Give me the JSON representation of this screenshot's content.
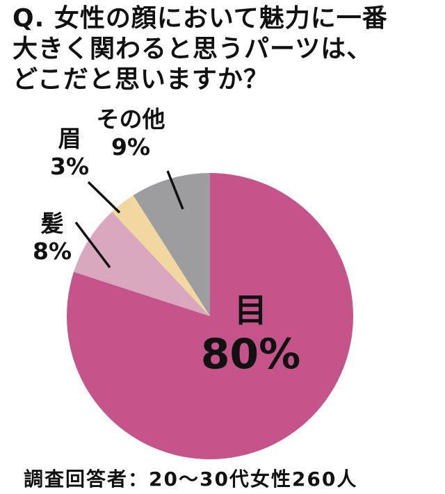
{
  "question": {
    "lines": [
      "Q. 女性の顔において魅力に一番",
      "大きく関わると思うパーツは、",
      "どこだと思いますか？"
    ]
  },
  "chart_data": {
    "type": "pie",
    "title": "Q. 女性の顔において魅力に一番大きく関わると思うパーツは、どこだと思いますか？",
    "start_angle_deg": 0,
    "direction": "clockwise",
    "legend": "none",
    "slices": [
      {
        "key": "eyes",
        "label": "目",
        "value": 80,
        "pct_text": "80%",
        "color": "#c4548a"
      },
      {
        "key": "hair",
        "label": "髪",
        "value": 8,
        "pct_text": "8%",
        "color": "#d9a8bf"
      },
      {
        "key": "eyebrows",
        "label": "眉",
        "value": 3,
        "pct_text": "3%",
        "color": "#f1d7a0"
      },
      {
        "key": "other",
        "label": "その他",
        "value": 9,
        "pct_text": "9%",
        "color": "#9d9da0"
      }
    ],
    "note": "調査回答者：20～30代女性260人"
  }
}
